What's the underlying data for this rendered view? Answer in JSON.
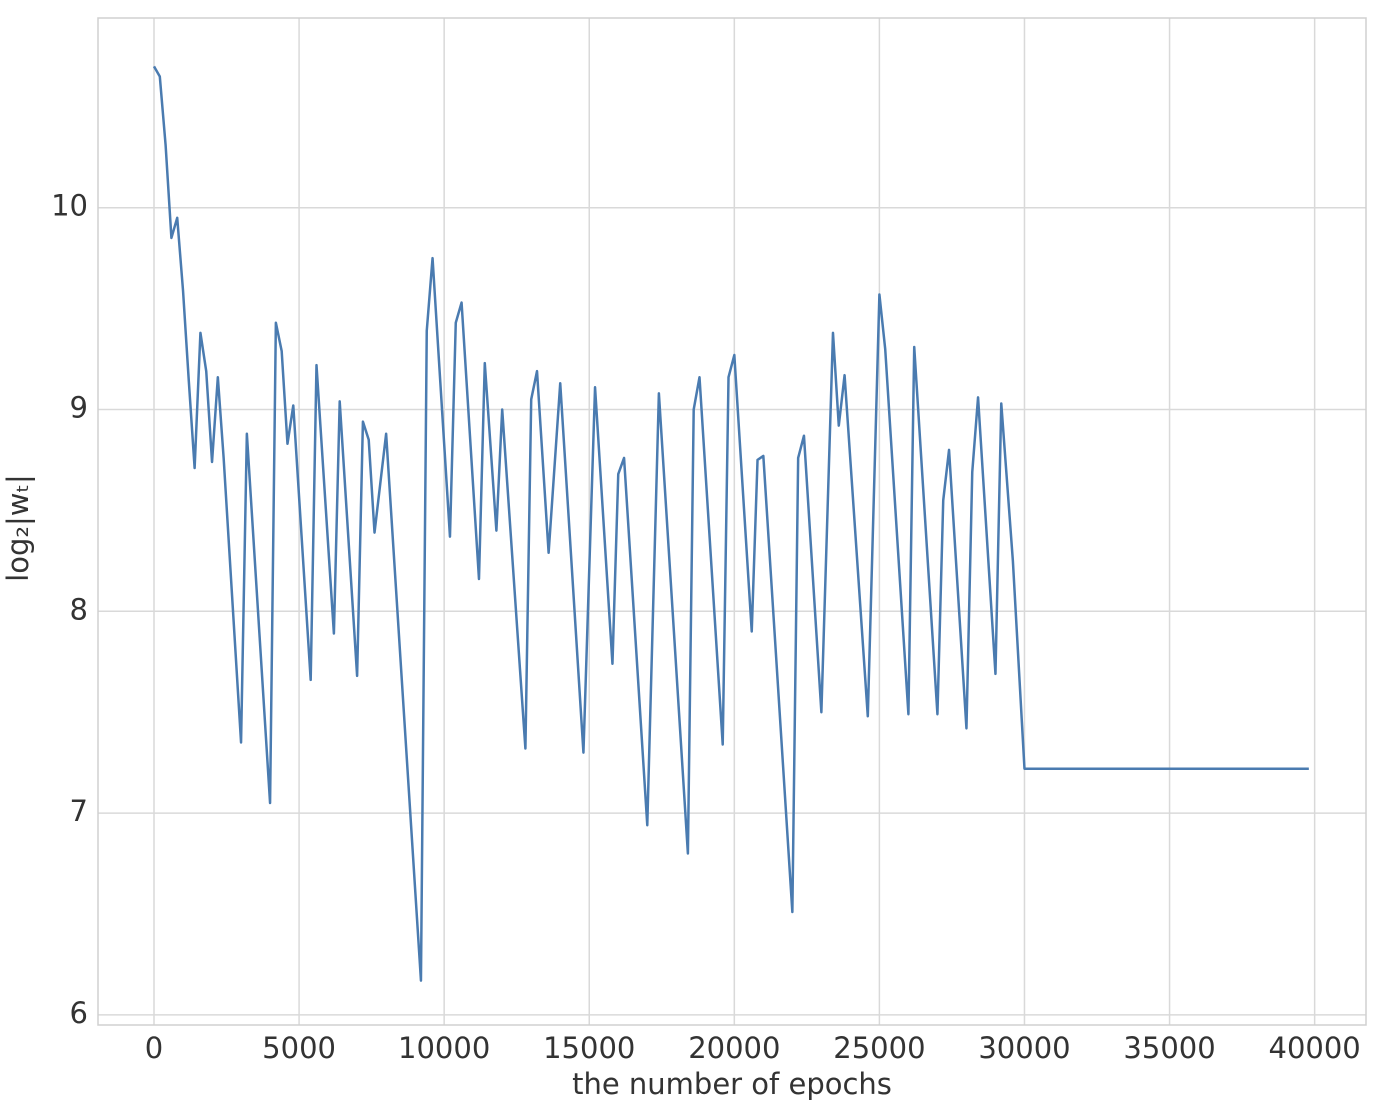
{
  "chart_data": {
    "type": "line",
    "xlabel": "the number of epochs",
    "ylabel": "log₂|wₜ|",
    "x": [
      0,
      200,
      400,
      600,
      800,
      1000,
      1200,
      1400,
      1600,
      1800,
      2000,
      2200,
      2400,
      3000,
      3200,
      4000,
      4200,
      4400,
      4600,
      4800,
      5400,
      5600,
      6200,
      6400,
      7000,
      7200,
      7400,
      7600,
      8000,
      9200,
      9400,
      9600,
      10200,
      10400,
      10600,
      11200,
      11400,
      11800,
      12000,
      12800,
      13000,
      13200,
      13600,
      14000,
      14800,
      15200,
      15800,
      16000,
      16200,
      17000,
      17400,
      18400,
      18600,
      18800,
      19600,
      19800,
      20000,
      20600,
      20800,
      21000,
      22000,
      22200,
      22400,
      23000,
      23400,
      23600,
      23800,
      24600,
      25000,
      25200,
      26000,
      26200,
      27000,
      27200,
      27400,
      28000,
      28200,
      28400,
      29000,
      29200,
      29600,
      30000,
      39800
    ],
    "series": [
      {
        "name": "log₂|wₜ|",
        "color": "#4a7bb0",
        "values": [
          10.7,
          10.65,
          10.31,
          9.85,
          9.95,
          9.59,
          9.14,
          8.71,
          9.38,
          9.19,
          8.74,
          9.16,
          8.76,
          7.35,
          8.88,
          7.05,
          9.43,
          9.29,
          8.83,
          9.02,
          7.66,
          9.22,
          7.89,
          9.04,
          7.68,
          8.94,
          8.85,
          8.39,
          8.88,
          6.17,
          9.39,
          9.75,
          8.37,
          9.43,
          9.53,
          8.16,
          9.23,
          8.4,
          9.0,
          7.32,
          9.05,
          9.19,
          8.29,
          9.13,
          7.3,
          9.11,
          7.74,
          8.68,
          8.76,
          6.94,
          9.08,
          6.8,
          9.0,
          9.16,
          7.34,
          9.16,
          9.27,
          7.9,
          8.75,
          8.77,
          6.51,
          8.76,
          8.87,
          7.5,
          9.38,
          8.92,
          9.17,
          7.48,
          9.57,
          9.3,
          7.49,
          9.31,
          7.49,
          8.55,
          8.8,
          7.42,
          8.69,
          9.06,
          7.69,
          9.03,
          8.25,
          7.22,
          7.22
        ]
      }
    ],
    "xlim": [
      -1930,
      41770
    ],
    "ylim": [
      5.95,
      10.94
    ],
    "xticks": [
      0,
      5000,
      10000,
      15000,
      20000,
      25000,
      30000,
      35000,
      40000
    ],
    "yticks": [
      6,
      7,
      8,
      9,
      10
    ],
    "grid": true
  }
}
